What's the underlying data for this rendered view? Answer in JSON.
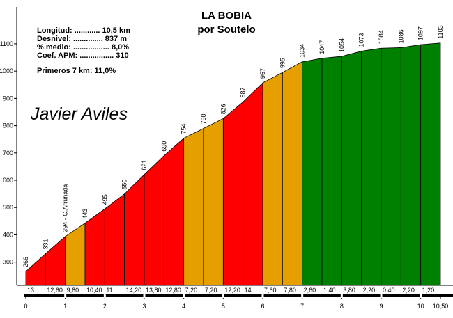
{
  "chart_data": {
    "type": "profile",
    "title": "LA BOBIA",
    "subtitle": "por Soutelo",
    "info_lines": [
      "Longitud: ............ 10,5 km",
      "Desnivel: .............. 837 m",
      "% medio: ................. 8,0%",
      "Coef. APM: ................ 310"
    ],
    "note": "Primeros 7 km: 11,0%",
    "author": "Javier Aviles",
    "x": [
      0,
      0.5,
      1,
      1.5,
      2,
      2.5,
      3,
      3.5,
      4,
      4.5,
      5,
      5.5,
      6,
      6.5,
      7,
      7.5,
      8,
      8.5,
      9,
      9.5,
      10,
      10.5
    ],
    "values": [
      266,
      331,
      394,
      443,
      495,
      550,
      621,
      690,
      754,
      790,
      826,
      887,
      957,
      995,
      1034,
      1047,
      1054,
      1073,
      1084,
      1086,
      1097,
      1103
    ],
    "value_labels": [
      "266",
      "331",
      "394 - C.Arruñada",
      "443",
      "495",
      "550",
      "621",
      "690",
      "754",
      "790",
      "826",
      "887",
      "957",
      "995",
      "1034",
      "1047",
      "1054",
      "1073",
      "1084",
      "1086",
      "1097",
      "1103"
    ],
    "gradients": [
      13,
      12.6,
      9.8,
      10.4,
      11,
      14.2,
      13.8,
      12.8,
      7.2,
      7.2,
      12.2,
      14,
      7.6,
      7.8,
      2.6,
      1.4,
      3.8,
      2.2,
      0.4,
      2.2,
      1.2
    ],
    "gradient_labels": [
      "13",
      "12,60",
      "9,80",
      "10,40",
      "11",
      "14,20",
      "13,80",
      "12,80",
      "7,20",
      "7,20",
      "12,20",
      "14",
      "7,60",
      "7,80",
      "2,60",
      "1,40",
      "3,80",
      "2,20",
      "0,40",
      "2,20",
      "1,20"
    ],
    "segment_colors": [
      "#ff0000",
      "#ff0000",
      "#e5a000",
      "#ff0000",
      "#ff0000",
      "#ff0000",
      "#ff0000",
      "#ff0000",
      "#e5a000",
      "#e5a000",
      "#ff0000",
      "#ff0000",
      "#e5a000",
      "#e5a000",
      "#008000",
      "#008000",
      "#008000",
      "#008000",
      "#008000",
      "#008000",
      "#008000"
    ],
    "xlim": [
      0,
      10.5
    ],
    "xticks": [
      0,
      1,
      2,
      3,
      4,
      5,
      6,
      7,
      8,
      9,
      10,
      {
        "value": 10.5,
        "label": "10,50"
      }
    ],
    "ylim": [
      215,
      1235
    ],
    "yticks": [
      300,
      400,
      500,
      600,
      700,
      800,
      900,
      1000,
      1100
    ]
  }
}
